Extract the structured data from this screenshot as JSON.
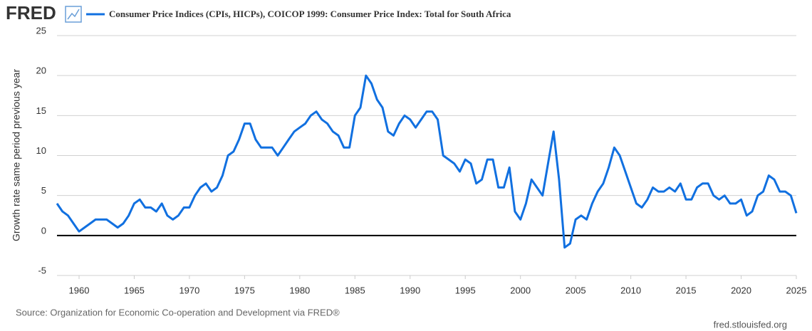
{
  "logo": "FRED",
  "source": "Source: Organization for Economic Co-operation and Development via FRED®",
  "site": "fred.stlouisfed.org",
  "chart_data": {
    "type": "line",
    "y_label": "Growth rate same period previous year",
    "x": [
      1958,
      1958.5,
      1959,
      1959.5,
      1960,
      1960.5,
      1961,
      1961.5,
      1962,
      1962.5,
      1963,
      1963.5,
      1964,
      1964.5,
      1965,
      1965.5,
      1966,
      1966.5,
      1967,
      1967.5,
      1968,
      1968.5,
      1969,
      1969.5,
      1970,
      1970.5,
      1971,
      1971.5,
      1972,
      1972.5,
      1973,
      1973.5,
      1974,
      1974.5,
      1975,
      1975.5,
      1976,
      1976.5,
      1977,
      1977.5,
      1978,
      1978.5,
      1979,
      1979.5,
      1980,
      1980.5,
      1981,
      1981.5,
      1982,
      1982.5,
      1983,
      1983.5,
      1984,
      1984.5,
      1985,
      1985.5,
      1986,
      1986.5,
      1987,
      1987.5,
      1988,
      1988.5,
      1989,
      1989.5,
      1990,
      1990.5,
      1991,
      1991.5,
      1992,
      1992.5,
      1993,
      1993.5,
      1994,
      1994.5,
      1995,
      1995.5,
      1996,
      1996.5,
      1997,
      1997.5,
      1998,
      1998.5,
      1999,
      1999.5,
      2000,
      2000.5,
      2001,
      2001.5,
      2002,
      2002.5,
      2003,
      2003.5,
      2004,
      2004.5,
      2005,
      2005.5,
      2006,
      2006.5,
      2007,
      2007.5,
      2008,
      2008.5,
      2009,
      2009.5,
      2010,
      2010.5,
      2011,
      2011.5,
      2012,
      2012.5,
      2013,
      2013.5,
      2014,
      2014.5,
      2015,
      2015.5,
      2016,
      2016.5,
      2017,
      2017.5,
      2018,
      2018.5,
      2019,
      2019.5,
      2020,
      2020.5,
      2021,
      2021.5,
      2022,
      2022.5,
      2023,
      2023.5,
      2024,
      2024.5,
      2025
    ],
    "series": [
      {
        "name": "Consumer Price Indices (CPIs, HICPs), COICOP 1999: Consumer Price Index: Total for South Africa",
        "color": "#1170e0",
        "values": [
          4,
          3,
          2.5,
          1.5,
          0.5,
          1,
          1.5,
          2,
          2,
          2,
          1.5,
          1,
          1.5,
          2.5,
          4,
          4.5,
          3.5,
          3.5,
          3,
          4,
          2.5,
          2,
          2.5,
          3.5,
          3.5,
          5,
          6,
          6.5,
          5.5,
          6,
          7.5,
          10,
          10.5,
          12,
          14,
          14,
          12,
          11,
          11,
          11,
          10,
          11,
          12,
          13,
          13.5,
          14,
          15,
          15.5,
          14.5,
          14,
          13,
          12.5,
          11,
          11,
          15,
          16,
          20,
          19,
          17,
          16,
          13,
          12.5,
          14,
          15,
          14.5,
          13.5,
          14.5,
          15.5,
          15.5,
          14.5,
          10,
          9.5,
          9,
          8,
          9.5,
          9,
          6.5,
          7,
          9.5,
          9.5,
          6,
          6,
          8.5,
          3,
          2,
          4,
          7,
          6,
          5,
          9,
          13,
          7,
          -1.5,
          -1,
          2,
          2.5,
          2,
          4,
          5.5,
          6.5,
          8.5,
          11,
          10,
          8,
          6,
          4,
          3.5,
          4.5,
          6,
          5.5,
          5.5,
          6,
          5.5,
          6.5,
          4.5,
          4.5,
          6,
          6.5,
          6.5,
          5,
          4.5,
          5,
          4,
          4,
          4.5,
          2.5,
          3,
          5,
          5.5,
          7.5,
          7,
          5.5,
          5.5,
          5,
          2.8
        ]
      }
    ],
    "xlim": [
      1958,
      2025
    ],
    "xticks": [
      1960,
      1965,
      1970,
      1975,
      1980,
      1985,
      1990,
      1995,
      2000,
      2005,
      2010,
      2015,
      2020,
      2025
    ],
    "ylim": [
      -5,
      25
    ],
    "yticks": [
      -5,
      0,
      5,
      10,
      15,
      20,
      25
    ],
    "grid": true
  }
}
